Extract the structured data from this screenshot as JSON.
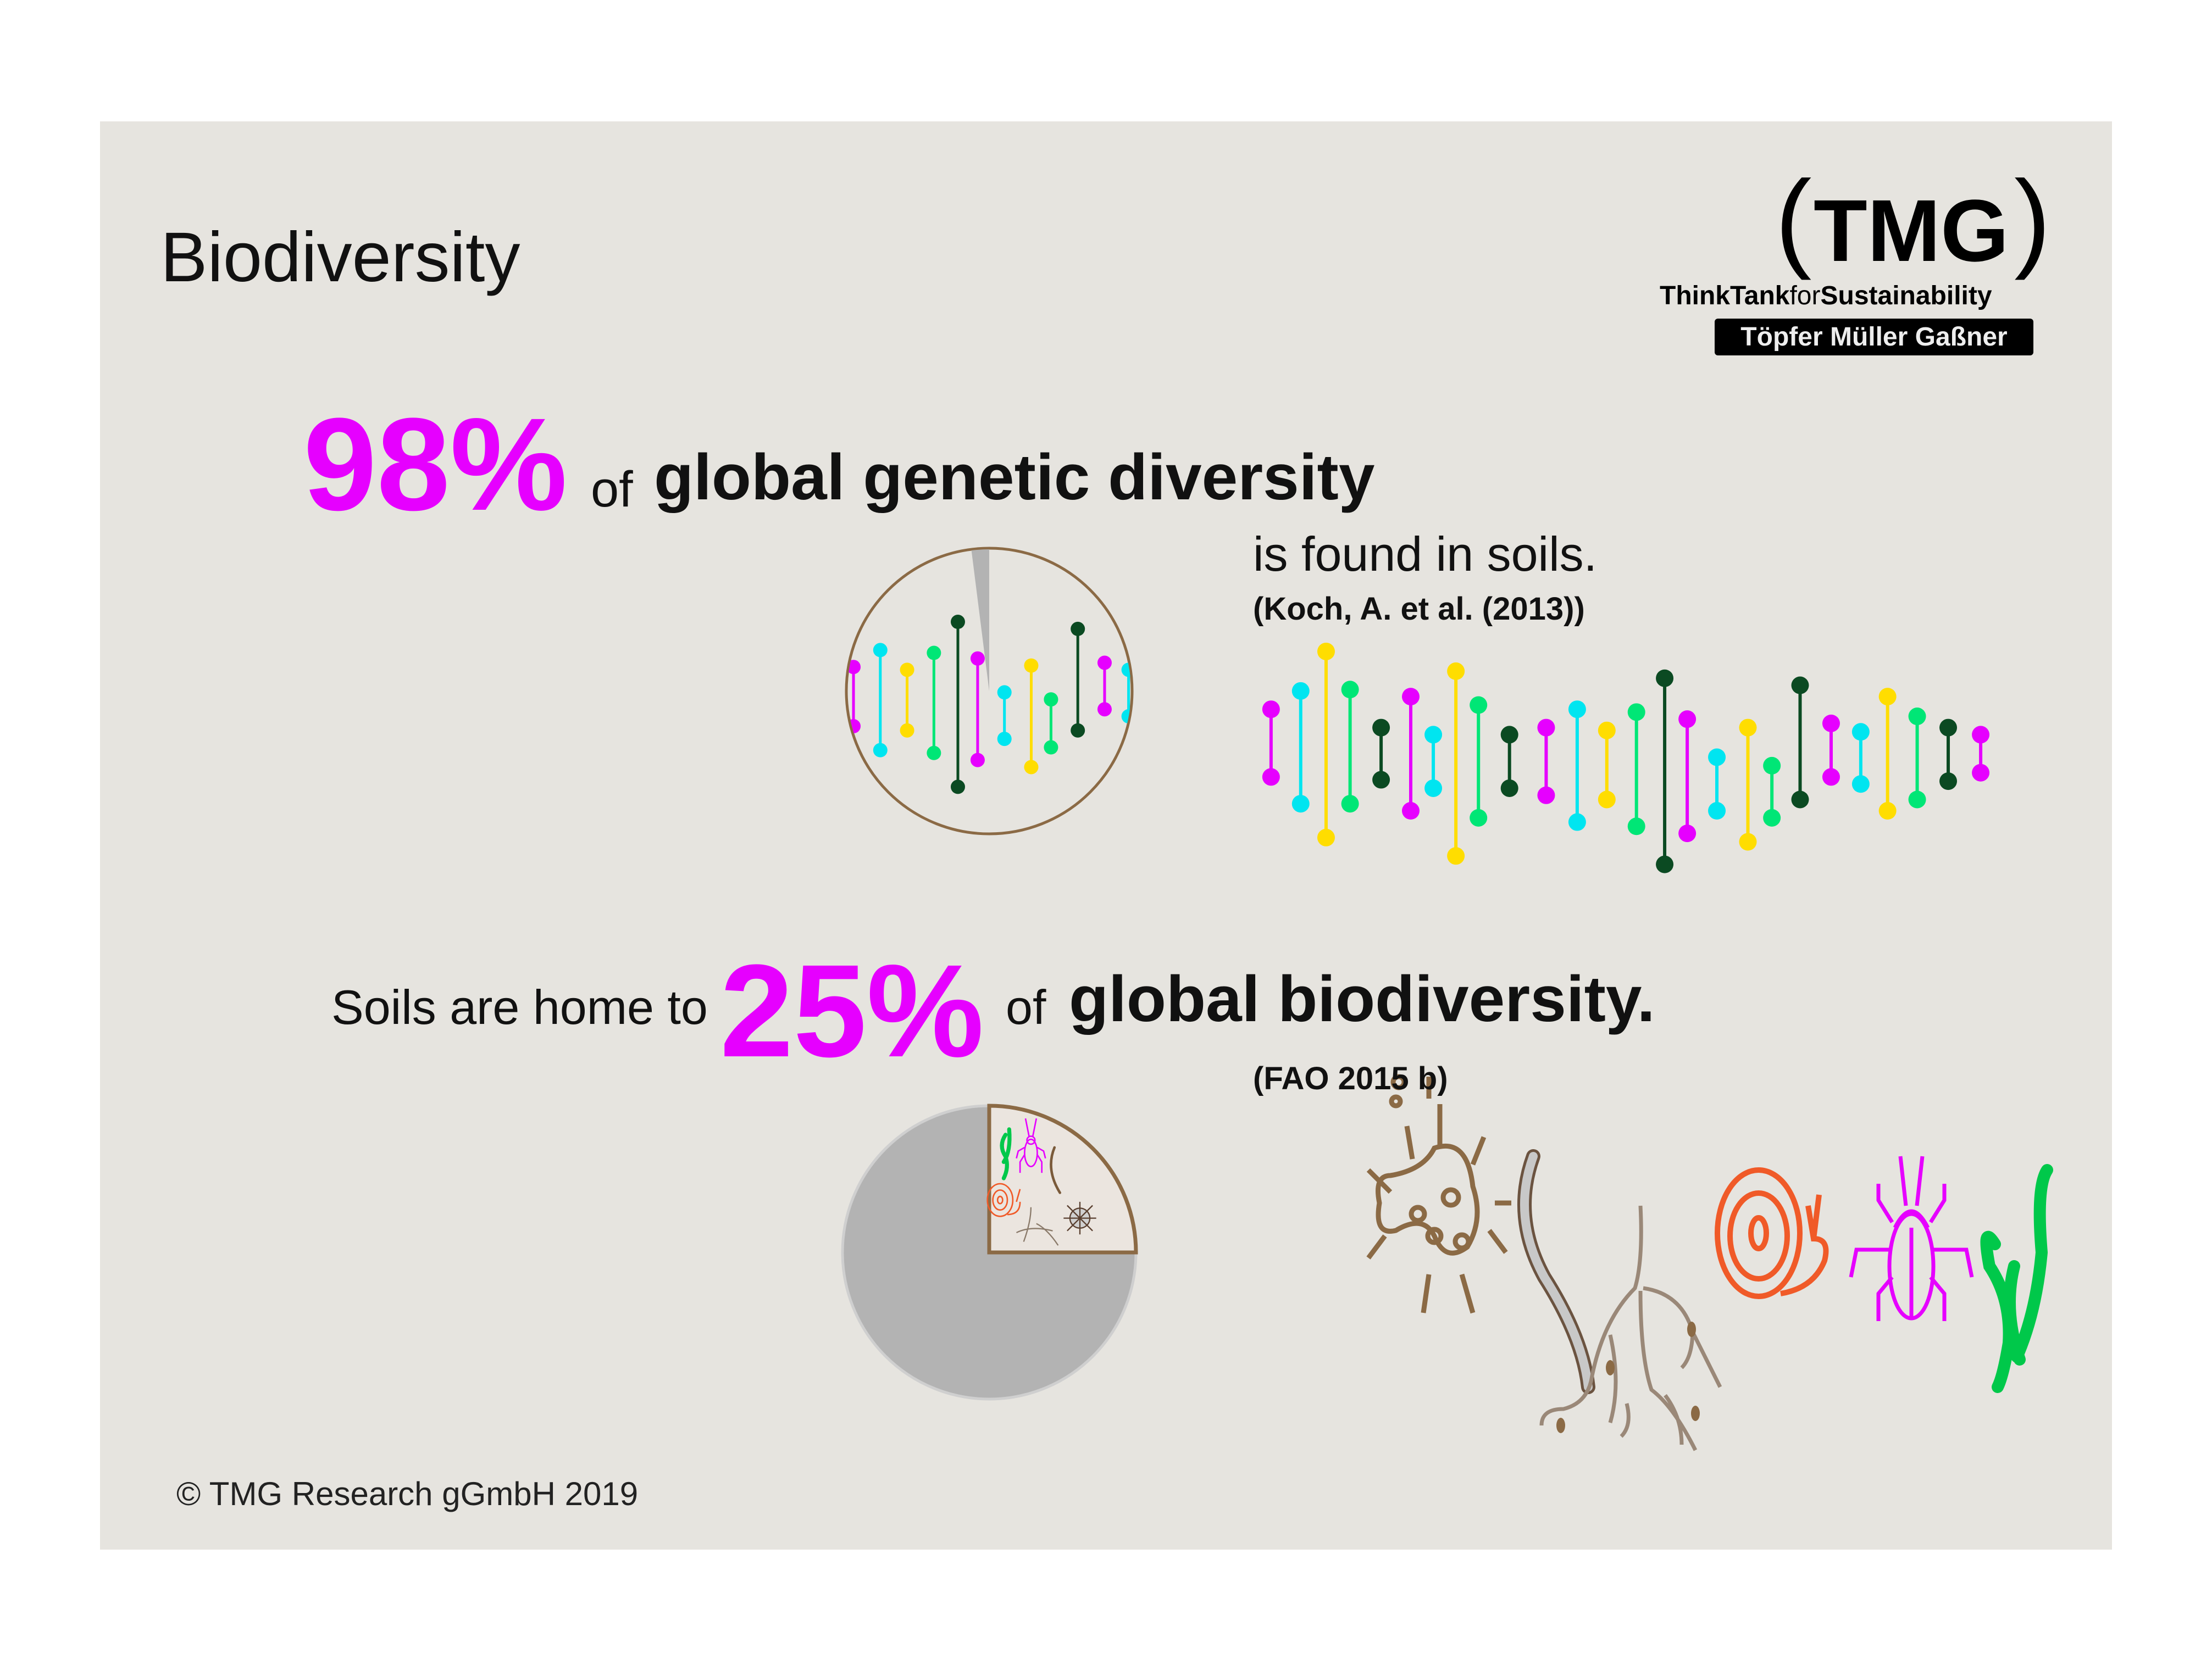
{
  "title": "Biodiversity",
  "logo": {
    "mark": "TMG",
    "tagline_think": "ThinkTank",
    "tagline_for": "for",
    "tagline_sust": "Sustainability",
    "names": "Töpfer Müller Gaßner"
  },
  "fact1": {
    "percent": "98%",
    "of": "of",
    "subject": "global genetic diversity",
    "continuation": "is found in soils.",
    "source": "(Koch, A. et al. (2013))",
    "pie_share_percent": 98
  },
  "fact2": {
    "lead": "Soils are home to",
    "percent": "25%",
    "of": "of",
    "subject": "global biodiversity.",
    "source": "(FAO 2015 b)",
    "pie_share_percent": 25
  },
  "organisms": [
    "microbe-icon",
    "earthworm-icon",
    "root-fungi-icon",
    "snail-icon",
    "beetle-icon",
    "plant-sprout-icon"
  ],
  "colors": {
    "magenta": "#e600ff",
    "cyan": "#00e5f0",
    "yellow": "#ffdd00",
    "green": "#00e676",
    "darkgreen": "#0b4a22",
    "brown": "#8b6a45",
    "gray": "#b3b3b3",
    "panel": "#e6e4df"
  },
  "footer": "© TMG Research gGmbH 2019"
}
